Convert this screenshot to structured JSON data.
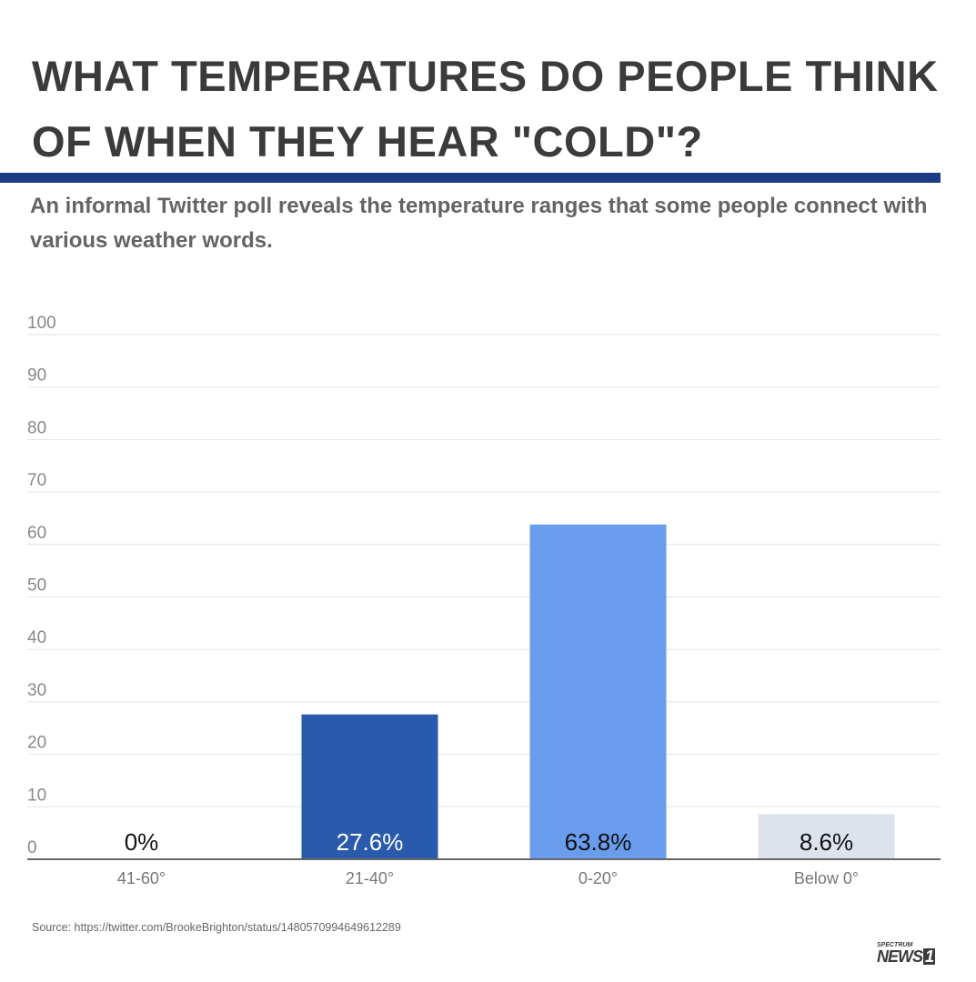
{
  "header": {
    "title": "WHAT TEMPERATURES DO PEOPLE THINK OF WHEN THEY HEAR \"COLD\"?",
    "subtitle": "An informal Twitter poll reveals the temperature ranges that some people connect with various weather words."
  },
  "chart_data": {
    "type": "bar",
    "categories": [
      "41-60°",
      "21-40°",
      "0-20°",
      "Below 0°"
    ],
    "values": [
      0,
      27.6,
      63.8,
      8.6
    ],
    "data_labels": [
      "0%",
      "27.6%",
      "63.8%",
      "8.6%"
    ],
    "colors": [
      "#2a5aab",
      "#2a5aab",
      "#6a9cee",
      "#dde3ec"
    ],
    "label_colors": [
      "#111111",
      "#ffffff",
      "#111111",
      "#111111"
    ],
    "ylim": [
      0,
      100
    ],
    "yticks": [
      0,
      10,
      20,
      30,
      40,
      50,
      60,
      70,
      80,
      90,
      100
    ],
    "grid": true,
    "xlabel": "",
    "ylabel": ""
  },
  "footer": {
    "source": "Source: https://twitter.com/BrookeBrighton/status/1480570994649612289",
    "logo_top": "SPECTRUM",
    "logo_main": "NEWS",
    "logo_num": "1"
  }
}
